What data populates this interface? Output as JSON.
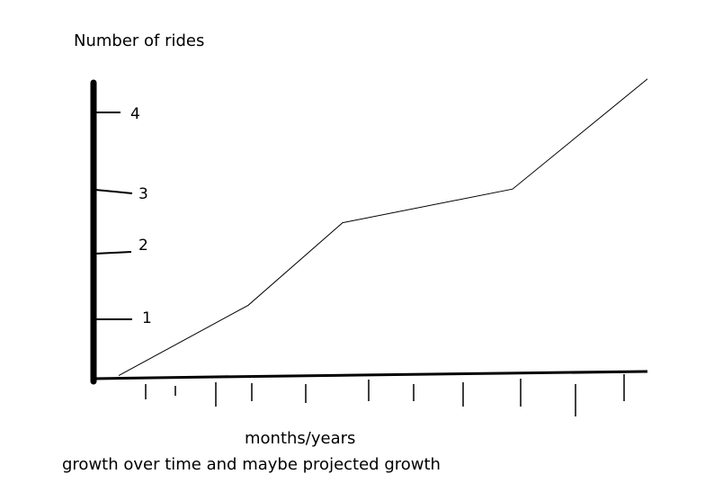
{
  "chart_data": {
    "type": "line",
    "title": "",
    "ylabel": "Number of rides",
    "xlabel": "months/years",
    "caption": "growth over time and maybe projected growth",
    "yticks": [
      "4",
      "3",
      "2",
      "1"
    ],
    "ylim": [
      0,
      4.5
    ],
    "grid": false,
    "legend": "none",
    "series": [
      {
        "x": [
          0,
          1,
          2,
          3,
          4
        ],
        "y": [
          0.05,
          1.2,
          2.55,
          3.1,
          4.9
        ]
      }
    ]
  }
}
